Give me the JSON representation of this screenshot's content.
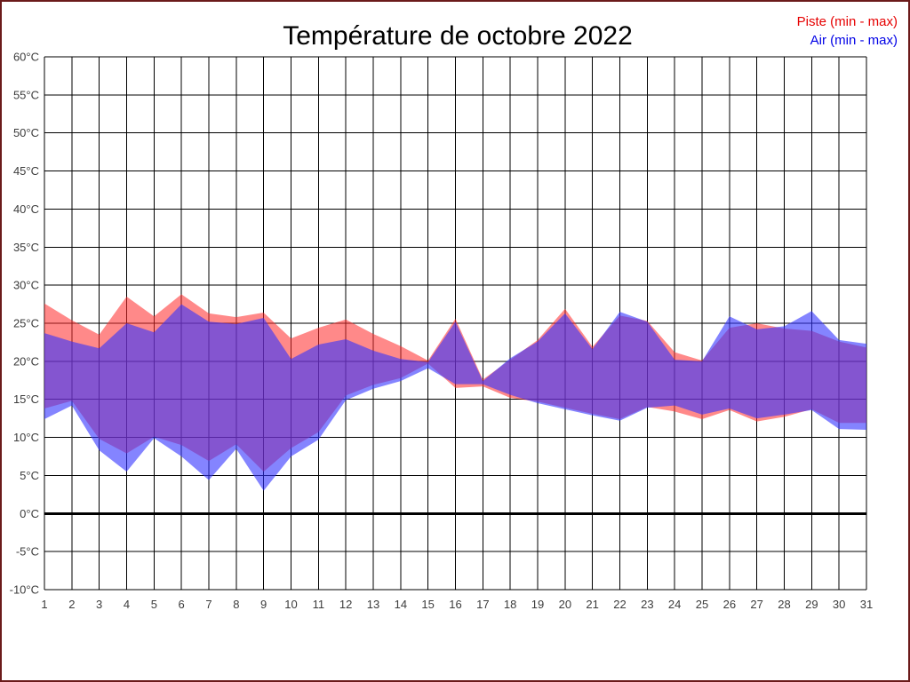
{
  "page": {
    "border_color": "#6b1a1a",
    "background": "#ffffff"
  },
  "title": "Température de octobre 2022",
  "legend": {
    "position": "top-right",
    "piste": {
      "label": "Piste (min - max)",
      "color": "#e60000"
    },
    "air": {
      "label": "Air (min - max)",
      "color": "#0000e6"
    }
  },
  "colors": {
    "grid": "#000000",
    "zero_line": "#000000",
    "tick_text": "#3c3c3c",
    "piste_fill": "rgba(255,40,40,0.55)",
    "air_fill": "rgba(50,50,255,0.60)"
  },
  "chart_data": {
    "type": "area",
    "title": "Température de octobre 2022",
    "xlabel": "",
    "ylabel": "",
    "ylim": [
      -10,
      60
    ],
    "grid": true,
    "zero_line_width": 3,
    "legend_position": "top-right",
    "x": [
      1,
      2,
      3,
      4,
      5,
      6,
      7,
      8,
      9,
      10,
      11,
      12,
      13,
      14,
      15,
      16,
      17,
      18,
      19,
      20,
      21,
      22,
      23,
      24,
      25,
      26,
      27,
      28,
      29,
      30,
      31
    ],
    "x_tick_labels": [
      "1",
      "2",
      "3",
      "4",
      "5",
      "6",
      "7",
      "8",
      "9",
      "10",
      "11",
      "12",
      "13",
      "14",
      "15",
      "16",
      "17",
      "18",
      "19",
      "20",
      "21",
      "22",
      "23",
      "24",
      "25",
      "26",
      "27",
      "28",
      "29",
      "30",
      "31"
    ],
    "y_ticks": [
      {
        "value": 60,
        "label": "60°C"
      },
      {
        "value": 55,
        "label": "55°C"
      },
      {
        "value": 50,
        "label": "50°C"
      },
      {
        "value": 45,
        "label": "45°C"
      },
      {
        "value": 40,
        "label": "40°C"
      },
      {
        "value": 35,
        "label": "35°C"
      },
      {
        "value": 30,
        "label": "30°C"
      },
      {
        "value": 25,
        "label": "25°C"
      },
      {
        "value": 20,
        "label": "20°C"
      },
      {
        "value": 15,
        "label": "15°C"
      },
      {
        "value": 10,
        "label": "10°C"
      },
      {
        "value": 5,
        "label": "5°C"
      },
      {
        "value": 0,
        "label": "0°C"
      },
      {
        "value": -5,
        "label": "-5°C"
      },
      {
        "value": -10,
        "label": "-10°C"
      }
    ],
    "series": [
      {
        "name": "Piste (min - max)",
        "role": "piste",
        "fill": "rgba(255,40,40,0.55)",
        "min": [
          13.8,
          14.8,
          9.8,
          7.9,
          10.1,
          9.0,
          6.9,
          9.1,
          5.5,
          8.6,
          10.7,
          15.5,
          16.9,
          17.8,
          19.7,
          16.5,
          16.7,
          15.2,
          14.7,
          13.9,
          13.1,
          12.4,
          14.0,
          13.4,
          12.4,
          13.6,
          12.1,
          12.7,
          13.7,
          11.9,
          11.9
        ],
        "max": [
          27.6,
          25.4,
          23.5,
          28.5,
          25.9,
          28.8,
          26.3,
          25.8,
          26.4,
          23.0,
          24.4,
          25.5,
          23.6,
          22.0,
          20.1,
          25.6,
          17.6,
          20.2,
          22.8,
          26.9,
          21.9,
          26.0,
          25.3,
          21.2,
          20.1,
          24.4,
          25.0,
          24.3,
          24.0,
          22.6,
          21.8
        ]
      },
      {
        "name": "Air (min - max)",
        "role": "air",
        "fill": "rgba(50,50,255,0.60)",
        "min": [
          12.4,
          14.2,
          8.3,
          5.5,
          9.9,
          7.5,
          4.4,
          8.5,
          3.0,
          7.5,
          9.7,
          14.9,
          16.4,
          17.4,
          19.1,
          17.0,
          17.0,
          15.6,
          14.5,
          13.7,
          12.9,
          12.2,
          13.9,
          14.2,
          13.0,
          13.8,
          12.5,
          13.0,
          13.6,
          11.1,
          11.0
        ],
        "max": [
          23.7,
          22.6,
          21.7,
          25.0,
          23.8,
          27.5,
          25.2,
          24.9,
          25.7,
          20.3,
          22.2,
          22.9,
          21.4,
          20.3,
          19.9,
          25.2,
          17.4,
          20.4,
          22.6,
          26.3,
          21.6,
          26.5,
          25.2,
          20.2,
          20.0,
          25.9,
          24.2,
          24.6,
          26.6,
          22.8,
          22.3
        ]
      }
    ]
  }
}
